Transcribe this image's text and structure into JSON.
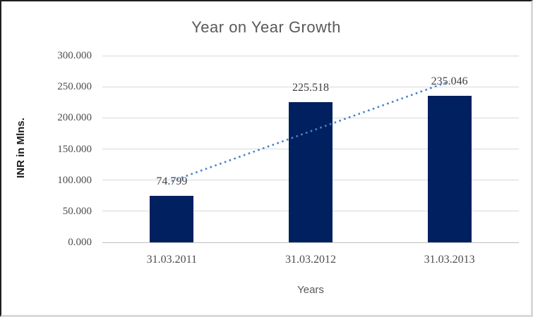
{
  "chart_data": {
    "type": "bar",
    "title": "Year on Year Growth",
    "xlabel": "Years",
    "ylabel": "INR in Mlns.",
    "categories": [
      "31.03.2011",
      "31.03.2012",
      "31.03.2013"
    ],
    "values": [
      74.799,
      225.518,
      235.046
    ],
    "data_labels": [
      "74.799",
      "225.518",
      "235.046"
    ],
    "ytick_values": [
      0,
      50,
      100,
      150,
      200,
      250,
      300
    ],
    "ytick_labels": [
      "0.000",
      "50.000",
      "100.000",
      "150.000",
      "200.000",
      "250.000",
      "300.000"
    ],
    "ylim": [
      0,
      300
    ],
    "grid": true,
    "legend": false,
    "colors": {
      "bar": "#002060",
      "trendline": "#4a82c8",
      "gridline": "#d9d9d9",
      "axis_line": "#bfbfbf",
      "title_text": "#595959",
      "axis_title_text": "#595959",
      "tick_text": "#4d4d4d",
      "data_label_text": "#404040"
    },
    "trendline": {
      "fit": "linear",
      "style": "dotted",
      "start_value": 98.3,
      "end_value": 258.7
    }
  }
}
